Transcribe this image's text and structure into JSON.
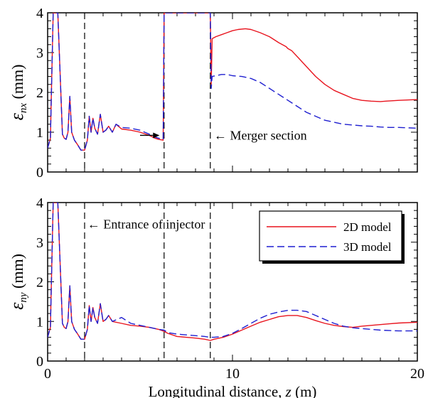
{
  "chart_data": [
    {
      "type": "line",
      "ylabel": "ε_nx (mm)",
      "ylabel_symbol": "ε",
      "ylabel_sub": "nx",
      "ylabel_unit": "(mm)",
      "xlim": [
        0,
        20
      ],
      "ylim": [
        0,
        4
      ],
      "yticks": [
        "0",
        "1",
        "2",
        "3",
        "4"
      ],
      "colors": {
        "2D model": "#e8141e",
        "3D model": "#1f1fd0"
      },
      "series": [
        {
          "name": "2D model",
          "x": [
            0,
            0.15,
            0.3,
            0.4,
            0.55,
            0.8,
            0.9,
            1.0,
            1.1,
            1.2,
            1.3,
            1.45,
            1.6,
            1.8,
            2.0,
            2.15,
            2.25,
            2.35,
            2.45,
            2.55,
            2.7,
            2.85,
            3.0,
            3.15,
            3.3,
            3.5,
            3.7,
            4.0,
            4.5,
            5.0,
            5.5,
            5.8,
            6.0,
            6.25,
            6.3,
            6.35,
            8.8,
            8.85,
            8.9,
            9.1,
            9.4,
            9.7,
            10.0,
            10.3,
            10.7,
            11.0,
            11.5,
            12.0,
            12.5,
            12.9,
            13.0,
            13.2,
            13.6,
            14.0,
            14.5,
            15.0,
            15.5,
            16.0,
            16.5,
            17.0,
            17.5,
            18.0,
            18.3,
            19.0,
            20.0
          ],
          "y": [
            0.6,
            0.85,
            4.0,
            4.0,
            4.0,
            0.95,
            0.85,
            0.82,
            1.0,
            1.9,
            1.0,
            0.8,
            0.7,
            0.55,
            0.55,
            0.8,
            1.4,
            1.0,
            1.35,
            1.1,
            0.95,
            1.45,
            1.0,
            1.05,
            1.15,
            1.0,
            1.2,
            1.08,
            1.05,
            1.0,
            0.92,
            0.85,
            0.82,
            0.8,
            4.0,
            4.0,
            4.0,
            2.2,
            3.35,
            3.4,
            3.45,
            3.5,
            3.55,
            3.58,
            3.6,
            3.58,
            3.5,
            3.4,
            3.25,
            3.15,
            3.1,
            3.05,
            2.85,
            2.65,
            2.4,
            2.2,
            2.05,
            1.95,
            1.85,
            1.8,
            1.78,
            1.77,
            1.78,
            1.8,
            1.82
          ]
        },
        {
          "name": "3D model",
          "x": [
            0,
            0.15,
            0.3,
            0.4,
            0.55,
            0.8,
            0.9,
            1.0,
            1.1,
            1.2,
            1.3,
            1.45,
            1.6,
            1.8,
            2.0,
            2.15,
            2.25,
            2.35,
            2.45,
            2.55,
            2.7,
            2.85,
            3.0,
            3.15,
            3.3,
            3.5,
            3.7,
            4.0,
            4.5,
            5.0,
            5.5,
            5.8,
            6.0,
            6.25,
            6.3,
            6.35,
            8.8,
            8.85,
            8.9,
            9.1,
            9.4,
            9.7,
            10.0,
            10.5,
            11.0,
            11.5,
            12.0,
            12.5,
            13.0,
            13.5,
            14.0,
            14.5,
            15.0,
            15.5,
            16.0,
            16.5,
            17.0,
            17.5,
            18.0,
            18.5,
            19.0,
            20.0
          ],
          "y": [
            0.6,
            0.85,
            4.0,
            4.0,
            4.0,
            0.95,
            0.85,
            0.82,
            1.0,
            1.9,
            1.0,
            0.8,
            0.7,
            0.55,
            0.55,
            0.8,
            1.4,
            1.0,
            1.35,
            1.1,
            0.95,
            1.45,
            1.0,
            1.05,
            1.15,
            1.0,
            1.2,
            1.12,
            1.1,
            1.05,
            0.95,
            0.88,
            0.85,
            0.82,
            4.0,
            4.0,
            4.0,
            2.1,
            2.4,
            2.42,
            2.45,
            2.45,
            2.42,
            2.4,
            2.35,
            2.25,
            2.1,
            1.95,
            1.8,
            1.65,
            1.5,
            1.4,
            1.3,
            1.25,
            1.2,
            1.18,
            1.16,
            1.15,
            1.13,
            1.12,
            1.12,
            1.1
          ]
        }
      ],
      "vlines_x": [
        2.0,
        6.3,
        8.8
      ],
      "annotations": [
        {
          "text": "",
          "kind": "arrow-right",
          "x_from": 5.0,
          "x_to": 6.05,
          "y": 0.92
        },
        {
          "text": "← Merger section",
          "kind": "text",
          "x": 9.0,
          "y": 0.92
        }
      ]
    },
    {
      "type": "line",
      "xlabel": "Longitudinal distance, z (m)",
      "xlabel_main": "Longitudinal distance, ",
      "xlabel_var": "z",
      "xlabel_unit": " (m)",
      "ylabel": "ε_ny (mm)",
      "ylabel_symbol": "ε",
      "ylabel_sub": "ny",
      "ylabel_unit": "(mm)",
      "xlim": [
        0,
        20
      ],
      "ylim": [
        0,
        4
      ],
      "xticks": [
        "0",
        "10",
        "20"
      ],
      "yticks": [
        "0",
        "1",
        "2",
        "3",
        "4"
      ],
      "legend_position": "upper-right",
      "legend": [
        {
          "label": "2D model",
          "style": "solid"
        },
        {
          "label": "3D model",
          "style": "dashed"
        }
      ],
      "series": [
        {
          "name": "2D model",
          "x": [
            0,
            0.15,
            0.3,
            0.4,
            0.55,
            0.8,
            0.9,
            1.0,
            1.1,
            1.2,
            1.3,
            1.45,
            1.6,
            1.8,
            2.0,
            2.15,
            2.25,
            2.35,
            2.45,
            2.55,
            2.7,
            2.85,
            3.0,
            3.15,
            3.3,
            3.5,
            4.0,
            4.5,
            5.0,
            5.5,
            6.0,
            6.3,
            6.5,
            7.0,
            7.5,
            8.0,
            8.5,
            8.8,
            9.0,
            9.5,
            10.0,
            10.5,
            11.0,
            11.5,
            12.0,
            12.5,
            13.0,
            13.5,
            14.0,
            14.5,
            15.0,
            15.5,
            16.0,
            16.5,
            17.0,
            17.5,
            18.0,
            18.5,
            19.0,
            20.0
          ],
          "y": [
            0.6,
            0.85,
            4.0,
            4.0,
            4.0,
            0.95,
            0.85,
            0.82,
            1.0,
            1.9,
            1.0,
            0.8,
            0.7,
            0.55,
            0.55,
            0.8,
            1.4,
            1.0,
            1.35,
            1.1,
            0.95,
            1.45,
            1.0,
            1.05,
            1.15,
            1.0,
            0.95,
            0.9,
            0.88,
            0.85,
            0.8,
            0.75,
            0.7,
            0.62,
            0.6,
            0.58,
            0.55,
            0.52,
            0.55,
            0.6,
            0.68,
            0.78,
            0.88,
            0.98,
            1.05,
            1.12,
            1.15,
            1.15,
            1.1,
            1.02,
            0.95,
            0.9,
            0.87,
            0.85,
            0.88,
            0.9,
            0.92,
            0.94,
            0.96,
            0.98
          ]
        },
        {
          "name": "3D model",
          "x": [
            0,
            0.15,
            0.3,
            0.4,
            0.55,
            0.8,
            0.9,
            1.0,
            1.1,
            1.2,
            1.3,
            1.45,
            1.6,
            1.8,
            2.0,
            2.15,
            2.25,
            2.35,
            2.45,
            2.55,
            2.7,
            2.85,
            3.0,
            3.15,
            3.3,
            3.5,
            4.0,
            4.5,
            5.0,
            5.5,
            6.0,
            6.3,
            6.5,
            7.0,
            7.5,
            8.0,
            8.5,
            8.8,
            9.0,
            9.5,
            10.0,
            10.5,
            11.0,
            11.5,
            12.0,
            12.5,
            13.0,
            13.5,
            14.0,
            14.5,
            15.0,
            15.5,
            16.0,
            16.5,
            17.0,
            17.5,
            18.0,
            18.5,
            19.0,
            20.0
          ],
          "y": [
            0.6,
            0.85,
            4.0,
            4.0,
            4.0,
            0.95,
            0.85,
            0.82,
            1.0,
            1.9,
            1.0,
            0.8,
            0.7,
            0.55,
            0.55,
            0.8,
            1.4,
            1.0,
            1.35,
            1.1,
            0.95,
            1.45,
            1.0,
            1.05,
            1.15,
            1.0,
            1.1,
            0.95,
            0.9,
            0.85,
            0.8,
            0.78,
            0.72,
            0.68,
            0.66,
            0.64,
            0.62,
            0.6,
            0.6,
            0.62,
            0.7,
            0.82,
            0.95,
            1.08,
            1.18,
            1.24,
            1.28,
            1.28,
            1.25,
            1.15,
            1.05,
            0.95,
            0.88,
            0.84,
            0.82,
            0.8,
            0.78,
            0.77,
            0.76,
            0.76
          ]
        }
      ],
      "vlines_x": [
        2.0,
        6.3,
        8.8
      ],
      "annotations": [
        {
          "text": "← Entrance of injector",
          "kind": "text",
          "x": 2.15,
          "y": 3.45
        }
      ]
    }
  ]
}
